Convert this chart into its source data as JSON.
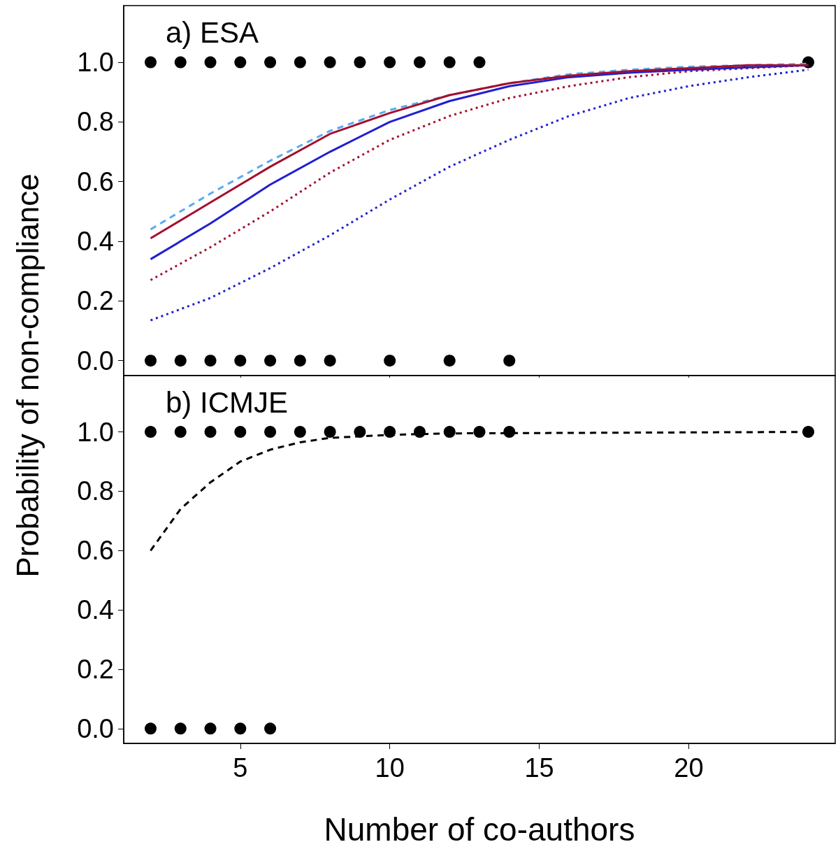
{
  "chart_data": [
    {
      "type": "line",
      "title": "a) ESA",
      "xlim": [
        1.1,
        24.9
      ],
      "xticks": [
        5,
        10,
        15,
        20
      ],
      "ylim": [
        -0.05,
        1.19
      ],
      "yticks": [
        {
          "value": 0,
          "label": "0.0"
        },
        {
          "value": 0.2,
          "label": "0.2"
        },
        {
          "value": 0.4,
          "label": "0.4"
        },
        {
          "value": 0.6,
          "label": "0.6"
        },
        {
          "value": 0.8,
          "label": "0.8"
        },
        {
          "value": 1,
          "label": "1.0"
        }
      ],
      "tick_labels": "y",
      "series": [
        {
          "type": "scatter",
          "marker": "circle",
          "color": "#000000",
          "x": [
            2,
            3,
            4,
            5,
            6,
            7,
            8,
            9,
            10,
            11,
            12,
            13,
            24
          ],
          "values": [
            1,
            1,
            1,
            1,
            1,
            1,
            1,
            1,
            1,
            1,
            1,
            1,
            1
          ]
        },
        {
          "type": "scatter",
          "marker": "circle",
          "color": "#000000",
          "x": [
            2,
            3,
            4,
            5,
            6,
            7,
            8,
            10,
            12,
            14
          ],
          "values": [
            0,
            0,
            0,
            0,
            0,
            0,
            0,
            0,
            0,
            0
          ]
        },
        {
          "marker": "none",
          "line_style": "dotted",
          "color": "#2020d0",
          "x": [
            2,
            4,
            6,
            8,
            10,
            12,
            14,
            16,
            18,
            20,
            22,
            24
          ],
          "values": [
            0.135,
            0.21,
            0.31,
            0.42,
            0.54,
            0.65,
            0.74,
            0.82,
            0.88,
            0.92,
            0.95,
            0.975
          ]
        },
        {
          "marker": "none",
          "line_style": "dotted",
          "color": "#a50f2d",
          "x": [
            2,
            4,
            6,
            8,
            10,
            12,
            14,
            16,
            18,
            20,
            22,
            24
          ],
          "values": [
            0.27,
            0.38,
            0.5,
            0.63,
            0.74,
            0.82,
            0.88,
            0.92,
            0.95,
            0.97,
            0.98,
            0.99
          ]
        },
        {
          "marker": "none",
          "line_style": "solid",
          "color": "#2020d0",
          "x": [
            2,
            4,
            6,
            8,
            10,
            12,
            14,
            16,
            18,
            20,
            22,
            24
          ],
          "values": [
            0.34,
            0.46,
            0.59,
            0.7,
            0.8,
            0.87,
            0.92,
            0.95,
            0.965,
            0.975,
            0.983,
            0.99
          ]
        },
        {
          "marker": "none",
          "line_style": "dashed",
          "color": "#5aaaf0",
          "x": [
            2,
            4,
            6,
            8,
            10,
            12,
            14,
            16,
            18,
            20,
            22,
            24
          ],
          "values": [
            0.44,
            0.56,
            0.67,
            0.77,
            0.84,
            0.89,
            0.93,
            0.96,
            0.975,
            0.985,
            0.99,
            0.995
          ]
        },
        {
          "marker": "none",
          "line_style": "solid",
          "color": "#a50f2d",
          "x": [
            2,
            4,
            6,
            8,
            10,
            12,
            14,
            16,
            18,
            20,
            22,
            24
          ],
          "values": [
            0.41,
            0.53,
            0.65,
            0.76,
            0.83,
            0.89,
            0.93,
            0.955,
            0.97,
            0.98,
            0.99,
            0.99
          ]
        }
      ]
    },
    {
      "type": "line",
      "title": "b) ICMJE",
      "xlabel": "Number of co-authors",
      "ylabel": "Probability of non-compliance",
      "xlim": [
        1.1,
        24.9
      ],
      "xticks": [
        5,
        10,
        15,
        20
      ],
      "ylim": [
        -0.05,
        1.19
      ],
      "yticks": [
        {
          "value": 0,
          "label": "0.0"
        },
        {
          "value": 0.2,
          "label": "0.2"
        },
        {
          "value": 0.4,
          "label": "0.4"
        },
        {
          "value": 0.6,
          "label": "0.6"
        },
        {
          "value": 0.8,
          "label": "0.8"
        },
        {
          "value": 1,
          "label": "1.0"
        }
      ],
      "series": [
        {
          "type": "scatter",
          "marker": "circle",
          "color": "#000000",
          "x": [
            2,
            3,
            4,
            5,
            6,
            7,
            8,
            9,
            10,
            11,
            12,
            13,
            14,
            24
          ],
          "values": [
            1,
            1,
            1,
            1,
            1,
            1,
            1,
            1,
            1,
            1,
            1,
            1,
            1,
            1
          ]
        },
        {
          "type": "scatter",
          "marker": "circle",
          "color": "#000000",
          "x": [
            2,
            3,
            4,
            5,
            6
          ],
          "values": [
            0,
            0,
            0,
            0,
            0
          ]
        },
        {
          "marker": "none",
          "line_style": "dashed",
          "color": "#000000",
          "x": [
            2,
            3,
            4,
            5,
            6,
            7,
            8,
            10,
            12,
            24
          ],
          "values": [
            0.6,
            0.74,
            0.83,
            0.9,
            0.94,
            0.965,
            0.98,
            0.99,
            0.995,
            1
          ]
        }
      ]
    }
  ]
}
